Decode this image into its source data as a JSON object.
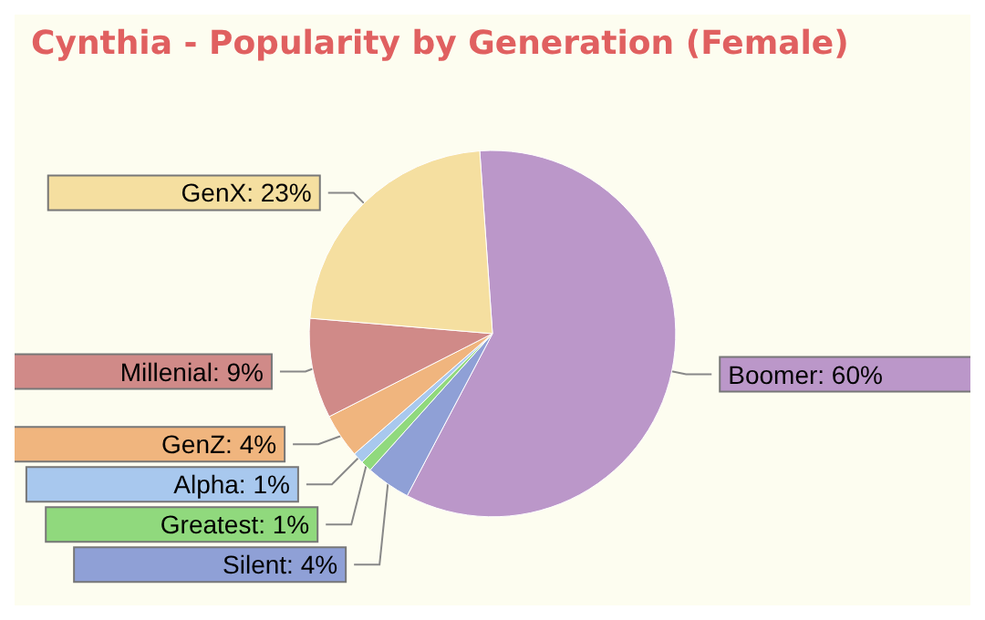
{
  "chart_data": {
    "type": "pie",
    "title": "Cynthia - Popularity by Generation (Female)",
    "categories": [
      "Boomer",
      "Silent",
      "Greatest",
      "Alpha",
      "GenZ",
      "Millenial",
      "GenX"
    ],
    "values": [
      60,
      4,
      1,
      1,
      4,
      9,
      23
    ],
    "value_labels": [
      "60%",
      "4%",
      "1%",
      "1%",
      "4%",
      "9%",
      "23%"
    ],
    "colors": [
      "#bb97c9",
      "#8fa0d6",
      "#90d97d",
      "#a8c8ee",
      "#f0b57e",
      "#d08a88",
      "#f5dfa0"
    ],
    "legend": false
  }
}
